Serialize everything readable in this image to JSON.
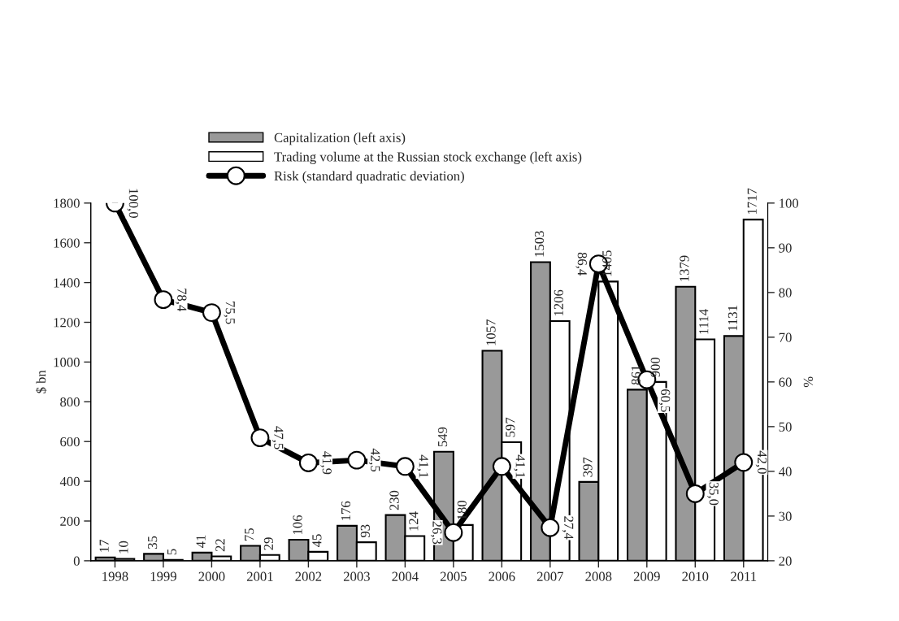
{
  "chart_data": {
    "type": "bar",
    "ylabel": "$ bn",
    "y2label": "%",
    "categories": [
      "1998",
      "1999",
      "2000",
      "2001",
      "2002",
      "2003",
      "2004",
      "2005",
      "2006",
      "2007",
      "2008",
      "2009",
      "2010",
      "2011"
    ],
    "series": [
      {
        "name": "Capitalization (left axis)",
        "color": "#999999",
        "values": [
          17,
          35,
          41,
          75,
          106,
          176,
          230,
          549,
          1057,
          1503,
          397,
          861,
          1379,
          1131
        ],
        "data_labels": true
      },
      {
        "name": "Trading volume at the Russian stock exchange (left axis)",
        "color": "#ffffff",
        "values": [
          10,
          5,
          22,
          29,
          45,
          93,
          124,
          180,
          597,
          1206,
          1405,
          900,
          1114,
          1717
        ],
        "data_labels": true
      },
      {
        "name": "Risk (standard quadratic deviation)",
        "type": "line",
        "axis": "y2",
        "color": "#000000",
        "marker": "circle",
        "values": [
          100.0,
          78.4,
          75.5,
          47.5,
          41.9,
          42.5,
          41.1,
          26.3,
          41.1,
          27.4,
          86.4,
          60.5,
          35.0,
          42.0
        ],
        "value_labels": [
          "100,0",
          "78,4",
          "75,5",
          "47,5",
          "41,9",
          "42,5",
          "41,1",
          "26,3",
          "41,1",
          "27,4",
          "86,4",
          "60,5",
          "35,0",
          "42,0"
        ]
      }
    ],
    "ylim": [
      0,
      1800
    ],
    "yticks": [
      0,
      200,
      400,
      600,
      800,
      1000,
      1200,
      1400,
      1600,
      1800
    ],
    "y2lim": [
      20,
      100
    ],
    "y2ticks": [
      20,
      30,
      40,
      50,
      60,
      70,
      80,
      90,
      100
    ],
    "legend": "top",
    "grid": false
  }
}
